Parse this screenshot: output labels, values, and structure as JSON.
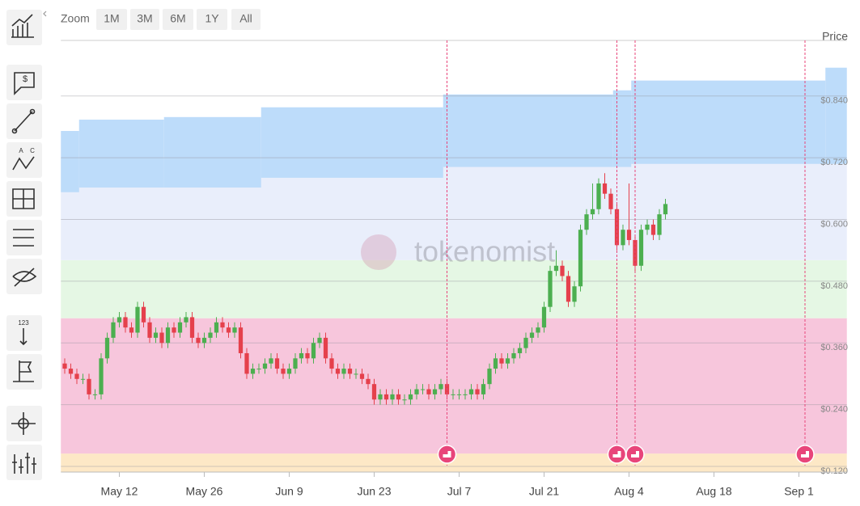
{
  "toolbar": {
    "zoom_label": "Zoom",
    "zoom_options": [
      "1M",
      "3M",
      "6M",
      "1Y",
      "All"
    ],
    "icon_texts": [
      "$",
      "A",
      "C",
      "123"
    ]
  },
  "watermark": "tokenomist",
  "chart_data": {
    "type": "candlestick",
    "y_axis_title": "Price",
    "categories": [
      null,
      null,
      null,
      null,
      null,
      null,
      null,
      null,
      null,
      "May 12",
      null,
      null,
      null,
      null,
      null,
      null,
      null,
      null,
      null,
      null,
      null,
      null,
      null,
      "May 26",
      null,
      null,
      null,
      null,
      null,
      null,
      null,
      null,
      null,
      null,
      null,
      null,
      null,
      "Jun 9",
      null,
      null,
      null,
      null,
      null,
      null,
      null,
      null,
      null,
      null,
      null,
      null,
      null,
      "Jun 23",
      null,
      null,
      null,
      null,
      null,
      null,
      null,
      null,
      null,
      null,
      null,
      null,
      null,
      "Jul 7",
      null,
      null,
      null,
      null,
      null,
      null,
      null,
      null,
      null,
      null,
      null,
      null,
      null,
      "Jul 21",
      null,
      null,
      null,
      null,
      null,
      null,
      null,
      null,
      null,
      null,
      null,
      null,
      null,
      "Aug 4",
      null,
      null,
      null,
      null,
      null,
      null,
      null,
      null,
      null,
      null,
      null,
      null,
      null,
      "Aug 18",
      null,
      null,
      null,
      null,
      null,
      null,
      null,
      null,
      null,
      null,
      null,
      null,
      null,
      "Sep 1",
      null,
      null,
      null,
      null,
      null,
      null,
      null
    ],
    "open": [
      0.32,
      0.31,
      0.3,
      0.29,
      0.29,
      0.26,
      0.26,
      0.33,
      0.37,
      0.4,
      0.41,
      0.39,
      0.38,
      0.43,
      0.4,
      0.37,
      0.38,
      0.36,
      0.39,
      0.38,
      0.4,
      0.41,
      0.37,
      0.36,
      0.37,
      0.38,
      0.4,
      0.39,
      0.38,
      0.39,
      0.34,
      0.3,
      0.31,
      0.31,
      0.32,
      0.33,
      0.31,
      0.3,
      0.31,
      0.33,
      0.34,
      0.33,
      0.36,
      0.37,
      0.33,
      0.31,
      0.3,
      0.31,
      0.3,
      0.3,
      0.29,
      0.28,
      0.25,
      0.26,
      0.25,
      0.26,
      0.25,
      0.25,
      0.26,
      0.27,
      0.27,
      0.26,
      0.27,
      0.28,
      0.26,
      0.26,
      0.26,
      0.26,
      0.27,
      0.26,
      0.28,
      0.31,
      0.33,
      0.32,
      0.33,
      0.34,
      0.35,
      0.37,
      0.38,
      0.39,
      0.43,
      0.5,
      0.51,
      0.49,
      0.44,
      0.47,
      0.58,
      0.61,
      0.62,
      0.67,
      0.65,
      0.62,
      0.55,
      0.58,
      0.56,
      0.51,
      0.58,
      0.59,
      0.57,
      0.61,
      null,
      null,
      null,
      null,
      null,
      null,
      null,
      null,
      null,
      null,
      null,
      null,
      null,
      null,
      null,
      null,
      null,
      null,
      null,
      null,
      null,
      null,
      null,
      null,
      null,
      null,
      null,
      null,
      null
    ],
    "high": [
      0.33,
      0.32,
      0.31,
      0.3,
      0.3,
      0.27,
      0.34,
      0.38,
      0.41,
      0.42,
      0.42,
      0.4,
      0.44,
      0.44,
      0.41,
      0.39,
      0.39,
      0.4,
      0.4,
      0.41,
      0.42,
      0.42,
      0.38,
      0.38,
      0.39,
      0.41,
      0.41,
      0.4,
      0.4,
      0.4,
      0.35,
      0.32,
      0.32,
      0.33,
      0.34,
      0.34,
      0.32,
      0.32,
      0.34,
      0.35,
      0.35,
      0.37,
      0.38,
      0.38,
      0.34,
      0.32,
      0.32,
      0.32,
      0.31,
      0.31,
      0.3,
      0.29,
      0.27,
      0.27,
      0.27,
      0.27,
      0.26,
      0.27,
      0.28,
      0.28,
      0.28,
      0.28,
      0.29,
      0.29,
      0.27,
      0.27,
      0.27,
      0.28,
      0.28,
      0.29,
      0.32,
      0.34,
      0.34,
      0.34,
      0.35,
      0.36,
      0.38,
      0.39,
      0.4,
      0.44,
      0.51,
      0.54,
      0.52,
      0.5,
      0.48,
      0.59,
      0.62,
      0.67,
      0.68,
      0.69,
      0.66,
      0.63,
      0.59,
      0.67,
      0.57,
      0.59,
      0.6,
      0.6,
      0.62,
      0.64,
      null,
      null,
      null,
      null,
      null,
      null,
      null,
      null,
      null,
      null,
      null,
      null,
      null,
      null,
      null,
      null,
      null,
      null,
      null,
      null,
      null,
      null,
      null,
      null,
      null,
      null,
      null,
      null,
      null
    ],
    "low": [
      0.3,
      0.29,
      0.28,
      0.28,
      0.25,
      0.25,
      0.25,
      0.32,
      0.36,
      0.39,
      0.38,
      0.37,
      0.37,
      0.39,
      0.36,
      0.36,
      0.35,
      0.35,
      0.37,
      0.37,
      0.39,
      0.36,
      0.35,
      0.35,
      0.36,
      0.37,
      0.38,
      0.37,
      0.37,
      0.33,
      0.29,
      0.29,
      0.3,
      0.3,
      0.31,
      0.3,
      0.29,
      0.29,
      0.3,
      0.32,
      0.32,
      0.32,
      0.35,
      0.32,
      0.3,
      0.29,
      0.29,
      0.29,
      0.29,
      0.28,
      0.27,
      0.24,
      0.24,
      0.24,
      0.24,
      0.24,
      0.24,
      0.24,
      0.25,
      0.26,
      0.25,
      0.25,
      0.26,
      0.25,
      0.25,
      0.25,
      0.25,
      0.25,
      0.25,
      0.25,
      0.27,
      0.3,
      0.31,
      0.31,
      0.32,
      0.33,
      0.34,
      0.36,
      0.37,
      0.38,
      0.42,
      0.49,
      0.48,
      0.43,
      0.43,
      0.46,
      0.57,
      0.6,
      0.61,
      0.64,
      0.61,
      0.54,
      0.54,
      0.55,
      0.5,
      0.5,
      0.57,
      0.56,
      0.56,
      0.6,
      null,
      null,
      null,
      null,
      null,
      null,
      null,
      null,
      null,
      null,
      null,
      null,
      null,
      null,
      null,
      null,
      null,
      null,
      null,
      null,
      null,
      null,
      null,
      null,
      null,
      null,
      null,
      null,
      null
    ],
    "close": [
      0.31,
      0.3,
      0.29,
      0.29,
      0.26,
      0.26,
      0.33,
      0.37,
      0.4,
      0.41,
      0.39,
      0.38,
      0.43,
      0.4,
      0.37,
      0.38,
      0.36,
      0.39,
      0.38,
      0.4,
      0.41,
      0.37,
      0.36,
      0.37,
      0.38,
      0.4,
      0.39,
      0.38,
      0.39,
      0.34,
      0.3,
      0.31,
      0.31,
      0.32,
      0.33,
      0.31,
      0.3,
      0.31,
      0.33,
      0.34,
      0.33,
      0.36,
      0.37,
      0.33,
      0.31,
      0.3,
      0.31,
      0.3,
      0.3,
      0.29,
      0.28,
      0.25,
      0.26,
      0.25,
      0.26,
      0.25,
      0.25,
      0.26,
      0.27,
      0.27,
      0.26,
      0.27,
      0.28,
      0.26,
      0.26,
      0.26,
      0.26,
      0.27,
      0.26,
      0.28,
      0.31,
      0.33,
      0.32,
      0.33,
      0.34,
      0.35,
      0.37,
      0.38,
      0.39,
      0.43,
      0.5,
      0.51,
      0.49,
      0.44,
      0.47,
      0.58,
      0.61,
      0.62,
      0.67,
      0.65,
      0.62,
      0.55,
      0.58,
      0.56,
      0.51,
      0.58,
      0.59,
      0.57,
      0.61,
      0.63,
      null,
      null,
      null,
      null,
      null,
      null,
      null,
      null,
      null,
      null,
      null,
      null,
      null,
      null,
      null,
      null,
      null,
      null,
      null,
      null,
      null,
      null,
      null,
      null,
      null,
      null,
      null,
      null,
      null
    ],
    "up_color": "#4caf50",
    "down_color": "#e5404c",
    "ylim": [
      0.109,
      0.948
    ],
    "yticks": [
      {
        "value": 0.12,
        "label": "$0.120"
      },
      {
        "value": 0.24,
        "label": "$0.240"
      },
      {
        "value": 0.36,
        "label": "$0.360"
      },
      {
        "value": 0.48,
        "label": "$0.480"
      },
      {
        "value": 0.6,
        "label": "$0.600"
      },
      {
        "value": 0.72,
        "label": "$0.720"
      },
      {
        "value": 0.84,
        "label": "$0.840"
      }
    ],
    "grid": true,
    "bands": [
      {
        "from": 0.109,
        "to": 0.145,
        "color": "#fde8c6"
      },
      {
        "from": 0.145,
        "to": 0.408,
        "color": "#f7c6dc"
      },
      {
        "from": 0.408,
        "to": 0.521,
        "color": "#e5f7e4"
      },
      {
        "from": 0.521,
        "to": 0.72,
        "color": "#e9eefb"
      }
    ],
    "range_color": "#bddcfa",
    "range_steps": [
      {
        "start": 0,
        "low": 0.653,
        "high": 0.772
      },
      {
        "start": 3,
        "low": 0.662,
        "high": 0.794
      },
      {
        "start": 17,
        "low": 0.662,
        "high": 0.799
      },
      {
        "start": 33,
        "low": 0.681,
        "high": 0.818
      },
      {
        "start": 63,
        "low": 0.702,
        "high": 0.843
      },
      {
        "start": 91,
        "low": 0.702,
        "high": 0.851
      },
      {
        "start": 94,
        "low": 0.708,
        "high": 0.87
      },
      {
        "start": 126,
        "low": 0.708,
        "high": 0.895
      }
    ],
    "event_indices": [
      63,
      91,
      94,
      122
    ],
    "event_color": "#e8457a"
  }
}
